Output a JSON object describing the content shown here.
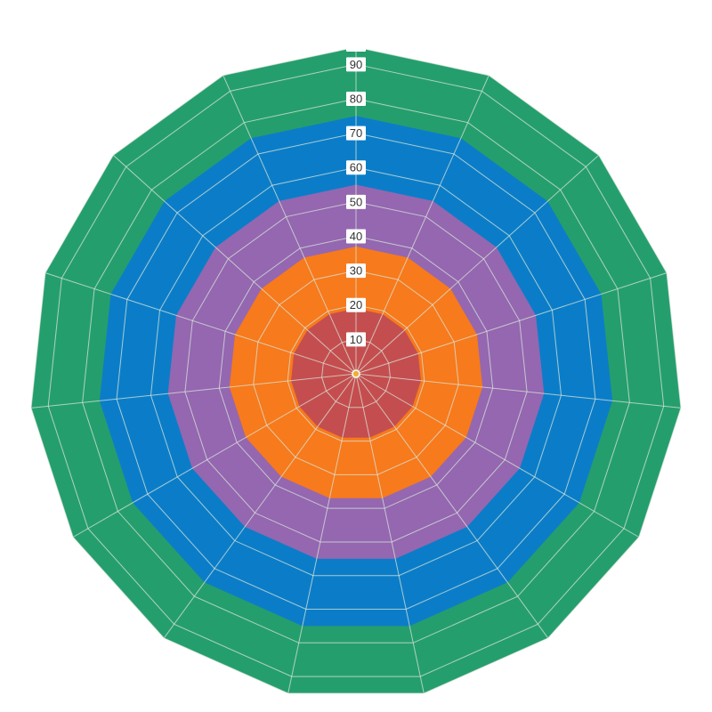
{
  "chart_data": {
    "type": "radar",
    "num_axes": 15,
    "r_max": 95,
    "grid": true,
    "r_ticks": [
      10,
      20,
      30,
      40,
      50,
      60,
      70,
      80,
      90
    ],
    "r_tick_labels": [
      "10",
      "20",
      "30",
      "40",
      "50",
      "60",
      "70",
      "80",
      "90"
    ],
    "series": [
      {
        "values": [
          95,
          95,
          95,
          95,
          95,
          95,
          95,
          95,
          95,
          95,
          95,
          95,
          95,
          95,
          95
        ],
        "color": "#259e6d"
      },
      {
        "values": [
          75,
          75,
          75,
          75,
          75,
          75,
          75,
          75,
          75,
          75,
          75,
          75,
          75,
          75,
          75
        ],
        "color": "#0b7dc8"
      },
      {
        "values": [
          55,
          55,
          55,
          55,
          55,
          55,
          55,
          55,
          55,
          55,
          55,
          55,
          55,
          55,
          55
        ],
        "color": "#9467b0"
      },
      {
        "values": [
          37,
          37,
          37,
          37,
          37,
          37,
          37,
          37,
          37,
          37,
          37,
          37,
          37,
          37,
          37
        ],
        "color": "#f77a1c"
      },
      {
        "values": [
          19,
          19,
          19,
          19,
          19,
          19,
          19,
          19,
          19,
          19,
          19,
          19,
          19,
          19,
          19
        ],
        "color": "#c44e4f"
      }
    ],
    "grid_color": "#d9e6d9",
    "center_marker_color": "#f0b030"
  }
}
